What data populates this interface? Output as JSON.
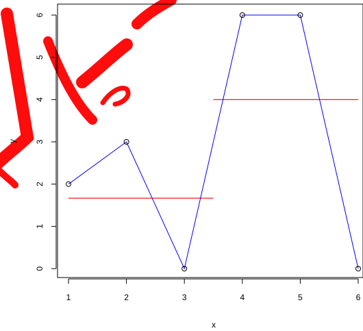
{
  "watermark_text": "MJF",
  "watermark_color": "#ff0000",
  "chart_data": {
    "type": "line",
    "title": "",
    "xlabel": "x",
    "ylabel": "y",
    "xlim": [
      1,
      6
    ],
    "ylim": [
      0,
      6
    ],
    "xticks": [
      "1",
      "2",
      "3",
      "4",
      "5",
      "6"
    ],
    "yticks": [
      "0",
      "1",
      "2",
      "3",
      "4",
      "5",
      "6"
    ],
    "grid": false,
    "legend": "none",
    "series": [
      {
        "style": "line-with-open-circles",
        "color": "#0000ff",
        "x": [
          1,
          2,
          3,
          4,
          5,
          6
        ],
        "y": [
          2,
          3,
          0,
          6,
          6,
          0
        ]
      }
    ],
    "segments": [
      {
        "color": "#ff0000",
        "x": [
          1,
          3.5
        ],
        "y": [
          1.667,
          1.667
        ]
      },
      {
        "color": "#ff0000",
        "x": [
          3.5,
          6
        ],
        "y": [
          4,
          4
        ]
      }
    ]
  }
}
